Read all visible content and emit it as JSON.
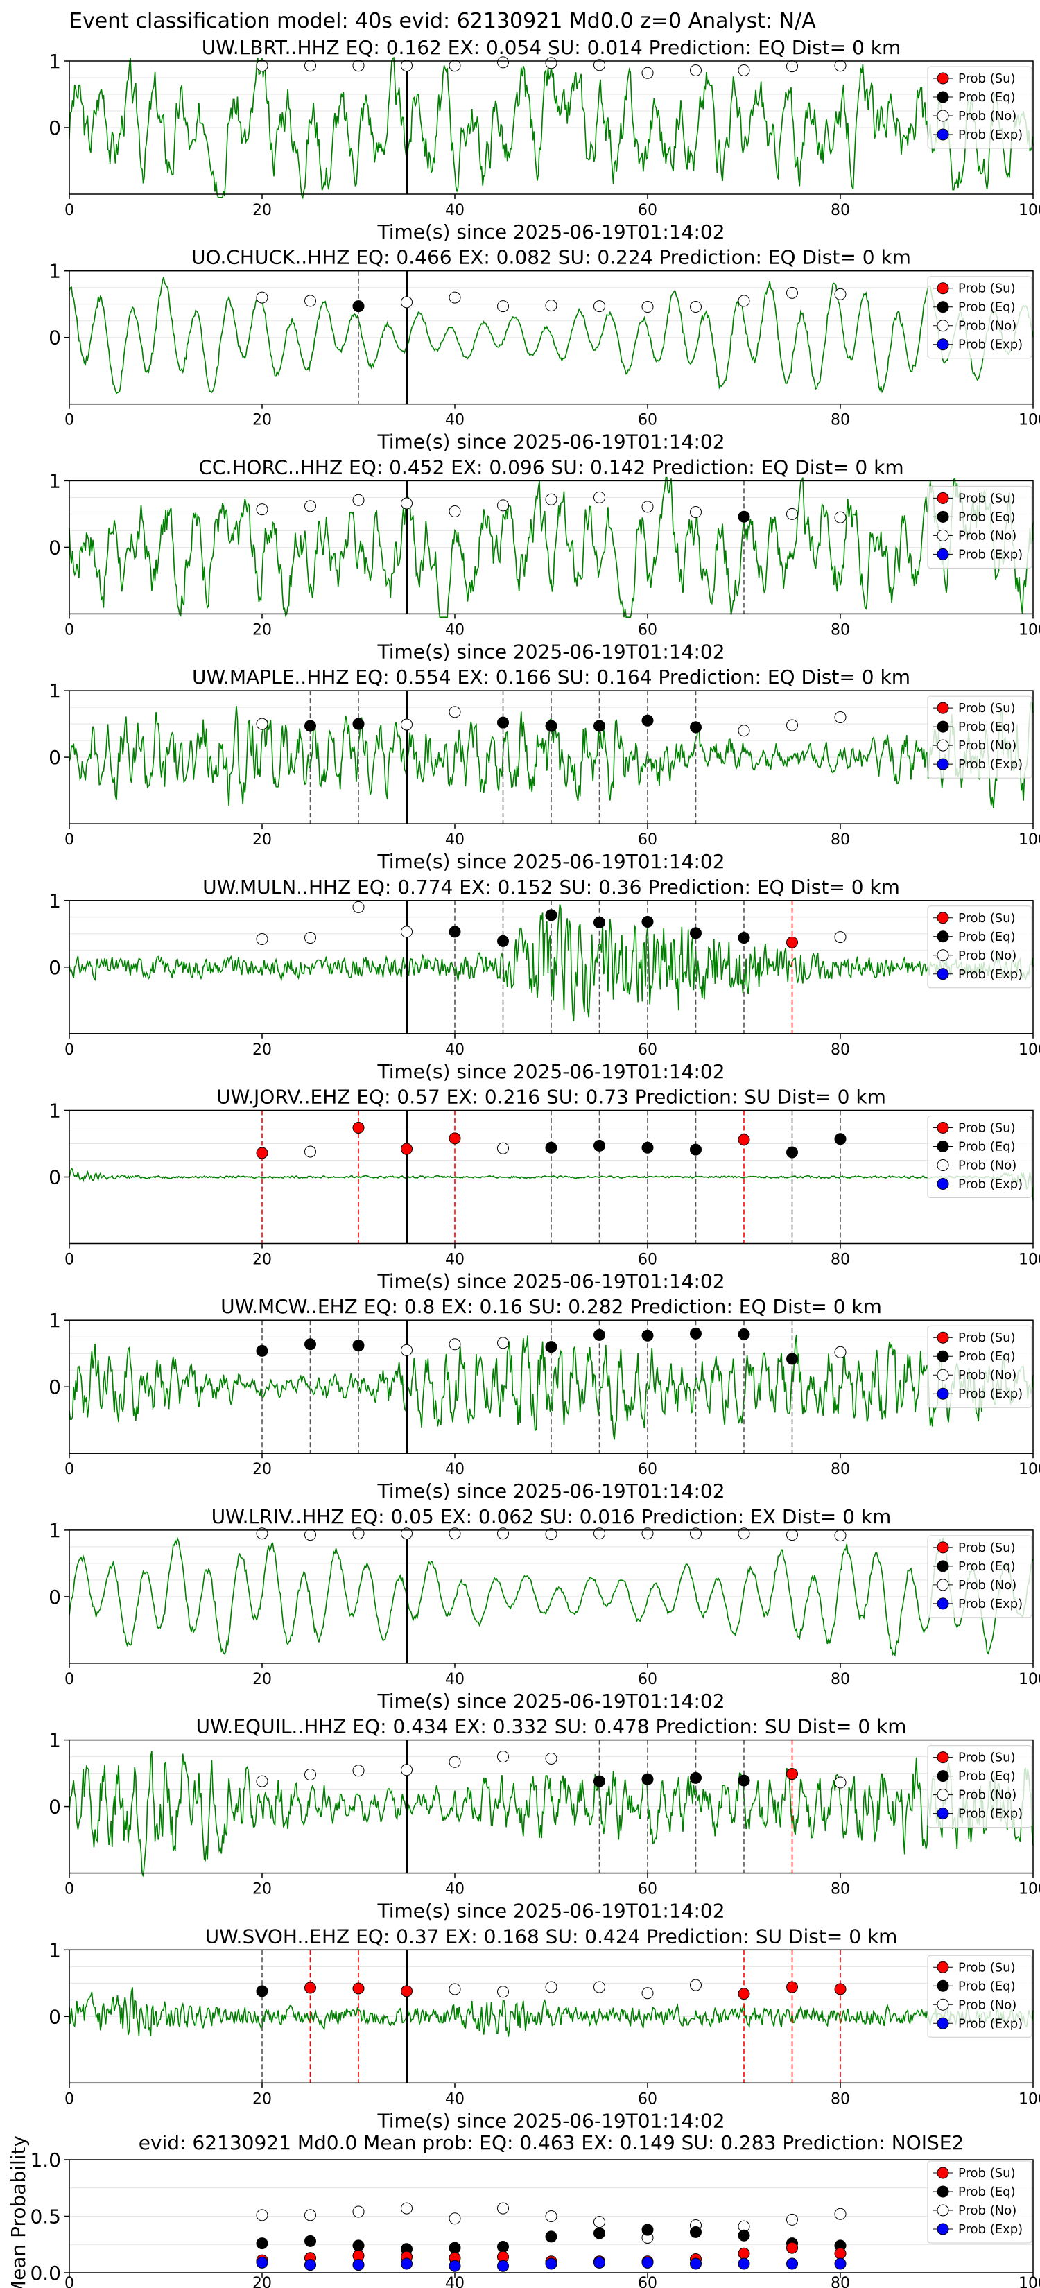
{
  "suptitle": "Event classification model: 40s evid: 62130921 Md0.0 z=0 Analyst: N/A",
  "legend": [
    {
      "label": "Prob (Su)",
      "color": "#ff0000"
    },
    {
      "label": "Prob (Eq)",
      "color": "#000000"
    },
    {
      "label": "Prob (No)",
      "color": "#ffffff"
    },
    {
      "label": "Prob (Exp)",
      "color": "#0000ff"
    }
  ],
  "colors": {
    "waveform": "#008000",
    "origin_line": "#000000"
  },
  "xlabel": "Time(s) since 2025-06-19T01:14:02",
  "origin_time": 35,
  "x_ticks": [
    0,
    20,
    40,
    60,
    80,
    100
  ],
  "y_ticks_wave": [
    0,
    1
  ],
  "chart_data": [
    {
      "type": "line",
      "title": "UW.LBRT..HHZ   EQ: 0.162  EX: 0.054  SU: 0.014   Prediction: EQ    Dist= 0 km",
      "xlim": [
        0,
        100
      ],
      "ylim": [
        -1,
        1
      ],
      "waveform_style": "moderate",
      "windows": [
        {
          "x": 20,
          "y": 0.93,
          "class": "no"
        },
        {
          "x": 25,
          "y": 0.93,
          "class": "no"
        },
        {
          "x": 30,
          "y": 0.93,
          "class": "no"
        },
        {
          "x": 35,
          "y": 0.93,
          "class": "no"
        },
        {
          "x": 40,
          "y": 0.93,
          "class": "no"
        },
        {
          "x": 45,
          "y": 0.98,
          "class": "no"
        },
        {
          "x": 50,
          "y": 0.97,
          "class": "no"
        },
        {
          "x": 55,
          "y": 0.94,
          "class": "no"
        },
        {
          "x": 60,
          "y": 0.82,
          "class": "no"
        },
        {
          "x": 65,
          "y": 0.86,
          "class": "no"
        },
        {
          "x": 70,
          "y": 0.86,
          "class": "no"
        },
        {
          "x": 75,
          "y": 0.92,
          "class": "no"
        },
        {
          "x": 80,
          "y": 0.93,
          "class": "no"
        }
      ]
    },
    {
      "type": "line",
      "title": "UO.CHUCK..HHZ   EQ: 0.466  EX: 0.082  SU: 0.224   Prediction: EQ    Dist= 0 km",
      "xlim": [
        0,
        100
      ],
      "ylim": [
        -1,
        1
      ],
      "waveform_style": "smooth",
      "windows": [
        {
          "x": 20,
          "y": 0.6,
          "class": "no"
        },
        {
          "x": 25,
          "y": 0.55,
          "class": "no"
        },
        {
          "x": 30,
          "y": 0.47,
          "class": "eq"
        },
        {
          "x": 35,
          "y": 0.53,
          "class": "no"
        },
        {
          "x": 40,
          "y": 0.6,
          "class": "no"
        },
        {
          "x": 45,
          "y": 0.47,
          "class": "no"
        },
        {
          "x": 50,
          "y": 0.48,
          "class": "no"
        },
        {
          "x": 55,
          "y": 0.47,
          "class": "no"
        },
        {
          "x": 60,
          "y": 0.46,
          "class": "no"
        },
        {
          "x": 65,
          "y": 0.46,
          "class": "no"
        },
        {
          "x": 70,
          "y": 0.55,
          "class": "no"
        },
        {
          "x": 75,
          "y": 0.67,
          "class": "no"
        },
        {
          "x": 80,
          "y": 0.65,
          "class": "no"
        }
      ]
    },
    {
      "type": "line",
      "title": "CC.HORC..HHZ   EQ: 0.452  EX: 0.096  SU: 0.142   Prediction: EQ    Dist= 0 km",
      "xlim": [
        0,
        100
      ],
      "ylim": [
        -1,
        1
      ],
      "waveform_style": "moderate",
      "windows": [
        {
          "x": 20,
          "y": 0.57,
          "class": "no"
        },
        {
          "x": 25,
          "y": 0.62,
          "class": "no"
        },
        {
          "x": 30,
          "y": 0.71,
          "class": "no"
        },
        {
          "x": 35,
          "y": 0.66,
          "class": "no"
        },
        {
          "x": 40,
          "y": 0.54,
          "class": "no"
        },
        {
          "x": 45,
          "y": 0.63,
          "class": "no"
        },
        {
          "x": 50,
          "y": 0.72,
          "class": "no"
        },
        {
          "x": 55,
          "y": 0.75,
          "class": "no"
        },
        {
          "x": 60,
          "y": 0.61,
          "class": "no"
        },
        {
          "x": 65,
          "y": 0.53,
          "class": "no"
        },
        {
          "x": 70,
          "y": 0.46,
          "class": "eq"
        },
        {
          "x": 75,
          "y": 0.5,
          "class": "no"
        },
        {
          "x": 80,
          "y": 0.45,
          "class": "no"
        }
      ]
    },
    {
      "type": "line",
      "title": "UW.MAPLE..HHZ   EQ: 0.554  EX: 0.166  SU: 0.164   Prediction: EQ    Dist= 0 km",
      "xlim": [
        0,
        100
      ],
      "ylim": [
        -1,
        1
      ],
      "waveform_style": "dense",
      "windows": [
        {
          "x": 20,
          "y": 0.5,
          "class": "no"
        },
        {
          "x": 25,
          "y": 0.47,
          "class": "eq"
        },
        {
          "x": 30,
          "y": 0.5,
          "class": "eq"
        },
        {
          "x": 35,
          "y": 0.49,
          "class": "no"
        },
        {
          "x": 40,
          "y": 0.68,
          "class": "no"
        },
        {
          "x": 45,
          "y": 0.52,
          "class": "eq"
        },
        {
          "x": 50,
          "y": 0.47,
          "class": "eq"
        },
        {
          "x": 55,
          "y": 0.47,
          "class": "eq"
        },
        {
          "x": 60,
          "y": 0.55,
          "class": "eq"
        },
        {
          "x": 65,
          "y": 0.45,
          "class": "eq"
        },
        {
          "x": 70,
          "y": 0.4,
          "class": "no"
        },
        {
          "x": 75,
          "y": 0.48,
          "class": "no"
        },
        {
          "x": 80,
          "y": 0.6,
          "class": "no"
        }
      ]
    },
    {
      "type": "line",
      "title": "UW.MULN..HHZ   EQ: 0.774  EX: 0.152  SU: 0.36   Prediction: EQ    Dist= 0 km",
      "xlim": [
        0,
        100
      ],
      "ylim": [
        -1,
        1
      ],
      "waveform_style": "burst",
      "windows": [
        {
          "x": 20,
          "y": 0.42,
          "class": "no"
        },
        {
          "x": 25,
          "y": 0.44,
          "class": "no"
        },
        {
          "x": 30,
          "y": 0.9,
          "class": "no"
        },
        {
          "x": 35,
          "y": 0.53,
          "class": "no"
        },
        {
          "x": 40,
          "y": 0.53,
          "class": "eq"
        },
        {
          "x": 45,
          "y": 0.39,
          "class": "eq"
        },
        {
          "x": 50,
          "y": 0.78,
          "class": "eq"
        },
        {
          "x": 55,
          "y": 0.67,
          "class": "eq"
        },
        {
          "x": 60,
          "y": 0.68,
          "class": "eq"
        },
        {
          "x": 65,
          "y": 0.51,
          "class": "eq"
        },
        {
          "x": 70,
          "y": 0.44,
          "class": "eq"
        },
        {
          "x": 75,
          "y": 0.37,
          "class": "su"
        },
        {
          "x": 80,
          "y": 0.45,
          "class": "no"
        }
      ]
    },
    {
      "type": "line",
      "title": "UW.JORV..EHZ   EQ: 0.57  EX: 0.216  SU: 0.73   Prediction: SU    Dist= 0 km",
      "xlim": [
        0,
        100
      ],
      "ylim": [
        -1,
        1
      ],
      "waveform_style": "quiet",
      "windows": [
        {
          "x": 20,
          "y": 0.36,
          "class": "su"
        },
        {
          "x": 25,
          "y": 0.38,
          "class": "no"
        },
        {
          "x": 30,
          "y": 0.74,
          "class": "su"
        },
        {
          "x": 35,
          "y": 0.42,
          "class": "su"
        },
        {
          "x": 40,
          "y": 0.58,
          "class": "su"
        },
        {
          "x": 45,
          "y": 0.43,
          "class": "no"
        },
        {
          "x": 50,
          "y": 0.44,
          "class": "eq"
        },
        {
          "x": 55,
          "y": 0.47,
          "class": "eq"
        },
        {
          "x": 60,
          "y": 0.44,
          "class": "eq"
        },
        {
          "x": 65,
          "y": 0.41,
          "class": "eq"
        },
        {
          "x": 70,
          "y": 0.56,
          "class": "su"
        },
        {
          "x": 75,
          "y": 0.37,
          "class": "eq"
        },
        {
          "x": 80,
          "y": 0.57,
          "class": "eq"
        }
      ]
    },
    {
      "type": "line",
      "title": "UW.MCW..EHZ   EQ: 0.8  EX: 0.16  SU: 0.282   Prediction: EQ    Dist= 0 km",
      "xlim": [
        0,
        100
      ],
      "ylim": [
        -1,
        1
      ],
      "waveform_style": "dense",
      "windows": [
        {
          "x": 20,
          "y": 0.54,
          "class": "eq"
        },
        {
          "x": 25,
          "y": 0.64,
          "class": "eq"
        },
        {
          "x": 30,
          "y": 0.62,
          "class": "eq"
        },
        {
          "x": 35,
          "y": 0.55,
          "class": "no"
        },
        {
          "x": 40,
          "y": 0.64,
          "class": "no"
        },
        {
          "x": 45,
          "y": 0.66,
          "class": "no"
        },
        {
          "x": 50,
          "y": 0.6,
          "class": "eq"
        },
        {
          "x": 55,
          "y": 0.78,
          "class": "eq"
        },
        {
          "x": 60,
          "y": 0.77,
          "class": "eq"
        },
        {
          "x": 65,
          "y": 0.8,
          "class": "eq"
        },
        {
          "x": 70,
          "y": 0.79,
          "class": "eq"
        },
        {
          "x": 75,
          "y": 0.42,
          "class": "eq"
        },
        {
          "x": 80,
          "y": 0.52,
          "class": "no"
        }
      ]
    },
    {
      "type": "line",
      "title": "UW.LRIV..HHZ   EQ: 0.05  EX: 0.062  SU: 0.016   Prediction: EX    Dist= 0 km",
      "xlim": [
        0,
        100
      ],
      "ylim": [
        -1,
        1
      ],
      "waveform_style": "smooth",
      "windows": [
        {
          "x": 20,
          "y": 0.95,
          "class": "no"
        },
        {
          "x": 25,
          "y": 0.93,
          "class": "no"
        },
        {
          "x": 30,
          "y": 0.95,
          "class": "no"
        },
        {
          "x": 35,
          "y": 0.95,
          "class": "no"
        },
        {
          "x": 40,
          "y": 0.95,
          "class": "no"
        },
        {
          "x": 45,
          "y": 0.95,
          "class": "no"
        },
        {
          "x": 50,
          "y": 0.94,
          "class": "no"
        },
        {
          "x": 55,
          "y": 0.95,
          "class": "no"
        },
        {
          "x": 60,
          "y": 0.95,
          "class": "no"
        },
        {
          "x": 65,
          "y": 0.95,
          "class": "no"
        },
        {
          "x": 70,
          "y": 0.95,
          "class": "no"
        },
        {
          "x": 75,
          "y": 0.93,
          "class": "no"
        },
        {
          "x": 80,
          "y": 0.92,
          "class": "no"
        }
      ]
    },
    {
      "type": "line",
      "title": "UW.EQUIL..HHZ   EQ: 0.434  EX: 0.332  SU: 0.478   Prediction: SU    Dist= 0 km",
      "xlim": [
        0,
        100
      ],
      "ylim": [
        -1,
        1
      ],
      "waveform_style": "dense",
      "windows": [
        {
          "x": 20,
          "y": 0.38,
          "class": "no"
        },
        {
          "x": 25,
          "y": 0.48,
          "class": "no"
        },
        {
          "x": 30,
          "y": 0.54,
          "class": "no"
        },
        {
          "x": 35,
          "y": 0.55,
          "class": "no"
        },
        {
          "x": 40,
          "y": 0.67,
          "class": "no"
        },
        {
          "x": 45,
          "y": 0.75,
          "class": "no"
        },
        {
          "x": 50,
          "y": 0.72,
          "class": "no"
        },
        {
          "x": 55,
          "y": 0.38,
          "class": "eq"
        },
        {
          "x": 60,
          "y": 0.41,
          "class": "eq"
        },
        {
          "x": 65,
          "y": 0.43,
          "class": "eq"
        },
        {
          "x": 70,
          "y": 0.39,
          "class": "eq"
        },
        {
          "x": 75,
          "y": 0.49,
          "class": "su"
        },
        {
          "x": 80,
          "y": 0.36,
          "class": "no"
        }
      ]
    },
    {
      "type": "line",
      "title": "UW.SVOH..EHZ   EQ: 0.37  EX: 0.168  SU: 0.424   Prediction: SU    Dist= 0 km",
      "xlim": [
        0,
        100
      ],
      "ylim": [
        -1,
        1
      ],
      "waveform_style": "noisy",
      "windows": [
        {
          "x": 20,
          "y": 0.38,
          "class": "eq"
        },
        {
          "x": 25,
          "y": 0.43,
          "class": "su"
        },
        {
          "x": 30,
          "y": 0.42,
          "class": "su"
        },
        {
          "x": 35,
          "y": 0.38,
          "class": "su"
        },
        {
          "x": 40,
          "y": 0.41,
          "class": "no"
        },
        {
          "x": 45,
          "y": 0.37,
          "class": "no"
        },
        {
          "x": 50,
          "y": 0.44,
          "class": "no"
        },
        {
          "x": 55,
          "y": 0.44,
          "class": "no"
        },
        {
          "x": 60,
          "y": 0.35,
          "class": "no"
        },
        {
          "x": 65,
          "y": 0.47,
          "class": "no"
        },
        {
          "x": 70,
          "y": 0.34,
          "class": "su"
        },
        {
          "x": 75,
          "y": 0.44,
          "class": "su"
        },
        {
          "x": 80,
          "y": 0.41,
          "class": "su"
        }
      ]
    },
    {
      "type": "scatter",
      "title": "evid: 62130921  Md0.0   Mean prob:   EQ: 0.463  EX: 0.149  SU: 0.283   Prediction: NOISE2",
      "ylabel": "Mean Probability",
      "xlim": [
        0,
        100
      ],
      "ylim": [
        0,
        1
      ],
      "y_ticks": [
        0.0,
        0.5,
        1.0
      ],
      "x": [
        20,
        25,
        30,
        35,
        40,
        45,
        50,
        55,
        60,
        65,
        70,
        75,
        80
      ],
      "series": [
        {
          "name": "Prob (Su)",
          "color": "#ff0000",
          "values": [
            0.11,
            0.13,
            0.15,
            0.14,
            0.13,
            0.14,
            0.1,
            0.1,
            0.1,
            0.12,
            0.17,
            0.22,
            0.17
          ]
        },
        {
          "name": "Prob (Eq)",
          "color": "#000000",
          "values": [
            0.26,
            0.28,
            0.24,
            0.21,
            0.22,
            0.23,
            0.32,
            0.35,
            0.38,
            0.36,
            0.33,
            0.26,
            0.24
          ]
        },
        {
          "name": "Prob (No)",
          "color": "#ffffff",
          "values": [
            0.51,
            0.51,
            0.54,
            0.57,
            0.48,
            0.57,
            0.5,
            0.45,
            0.31,
            0.42,
            0.41,
            0.47,
            0.52
          ]
        },
        {
          "name": "Prob (Exp)",
          "color": "#0000ff",
          "values": [
            0.09,
            0.07,
            0.07,
            0.08,
            0.06,
            0.06,
            0.08,
            0.09,
            0.09,
            0.08,
            0.08,
            0.08,
            0.08
          ]
        }
      ]
    }
  ]
}
